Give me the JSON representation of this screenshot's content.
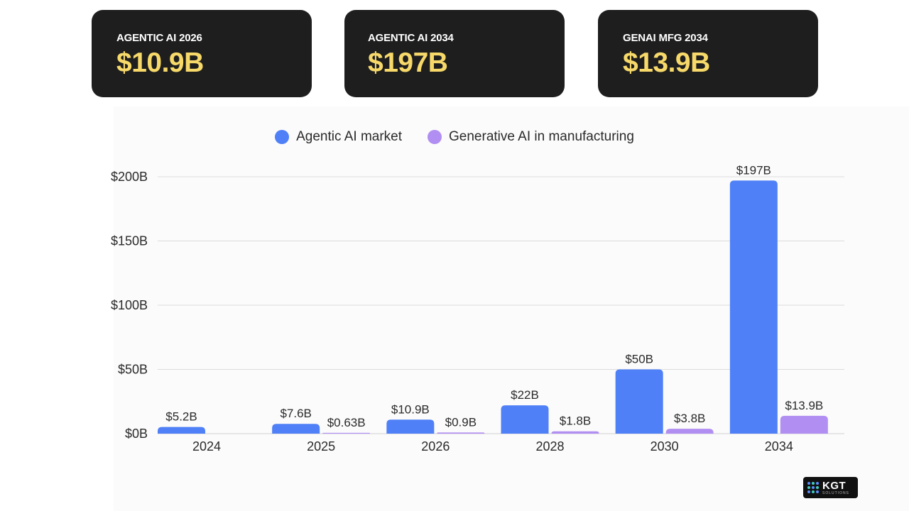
{
  "cards": [
    {
      "label": "AGENTIC AI 2026",
      "value": "$10.9B"
    },
    {
      "label": "AGENTIC AI 2034",
      "value": "$197B"
    },
    {
      "label": "GENAI MFG 2034",
      "value": "$13.9B"
    }
  ],
  "colors": {
    "agentic": "#4f80f7",
    "generative": "#b18ef2",
    "card_value": "#f7d96a",
    "grid": "#dcdcdc"
  },
  "logo": {
    "text": "KGT",
    "sub": "SOLUTIONS"
  },
  "chart_data": {
    "type": "bar",
    "categories": [
      "2024",
      "2025",
      "2026",
      "2028",
      "2030",
      "2034"
    ],
    "series": [
      {
        "name": "Agentic AI market",
        "values": [
          5.2,
          7.6,
          10.9,
          22,
          50,
          197
        ],
        "labels": [
          "$5.2B",
          "$7.6B",
          "$10.9B",
          "$22B",
          "$50B",
          "$197B"
        ]
      },
      {
        "name": "Generative AI in manufacturing",
        "values": [
          null,
          0.63,
          0.9,
          1.8,
          3.8,
          13.9
        ],
        "labels": [
          null,
          "$0.63B",
          "$0.9B",
          "$1.8B",
          "$3.8B",
          "$13.9B"
        ]
      }
    ],
    "ylim": [
      0,
      200
    ],
    "yticks": [
      0,
      50,
      100,
      150,
      200
    ],
    "ytick_labels": [
      "$0B",
      "$50B",
      "$100B",
      "$150B",
      "$200B"
    ],
    "grid": true,
    "legend": "top-center",
    "title": "",
    "xlabel": "",
    "ylabel": ""
  }
}
